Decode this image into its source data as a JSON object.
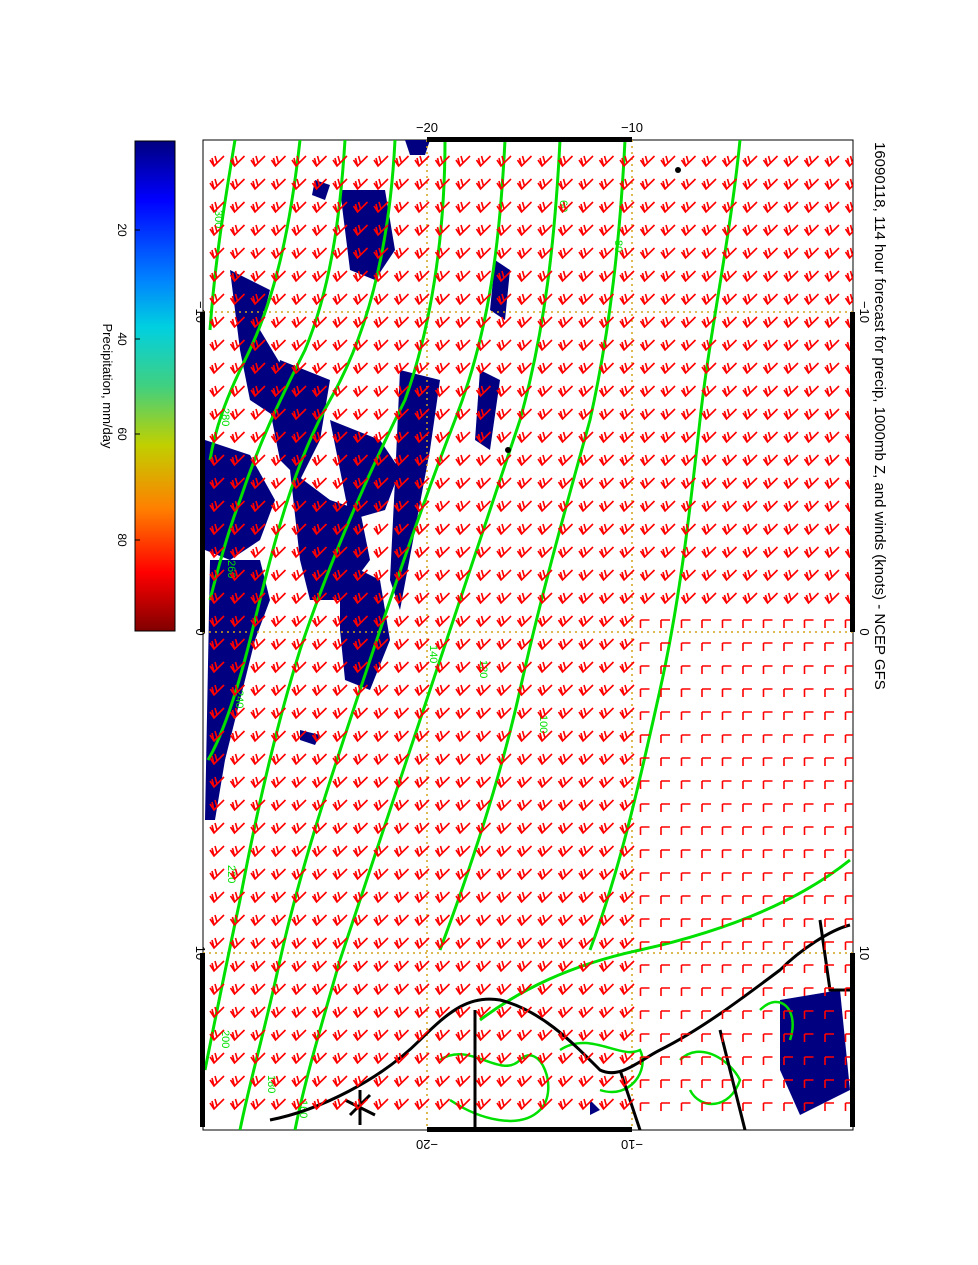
{
  "title": "16090118, 114 hour forecast for precip, 1000mb Z, and winds (knots) - NCEP GFS",
  "colorbar": {
    "label": "Precipitation, mm/day",
    "ticks": [
      "20",
      "40",
      "60",
      "80"
    ],
    "colors": [
      "#000080",
      "#0000ff",
      "#0080ff",
      "#00d0e0",
      "#40d080",
      "#c0d000",
      "#ff8000",
      "#ff0000",
      "#800000"
    ]
  },
  "axes": {
    "lat_ticks_top": [
      "-20",
      "-10"
    ],
    "lat_ticks_bottom": [
      "-20",
      "-10"
    ],
    "lon_ticks_left": [
      "-10",
      "0",
      "10"
    ],
    "lon_ticks_right": [
      "-10",
      "0",
      "10"
    ]
  },
  "contour_labels": [
    "300",
    "280",
    "260",
    "240",
    "220",
    "200",
    "180",
    "160",
    "140",
    "120",
    "100",
    "80",
    "60"
  ],
  "colors": {
    "precip_fill": "#000080",
    "contour": "#00e000",
    "wind_barb": "#ff0000",
    "coastline": "#000000",
    "grid": "#d4a017"
  }
}
